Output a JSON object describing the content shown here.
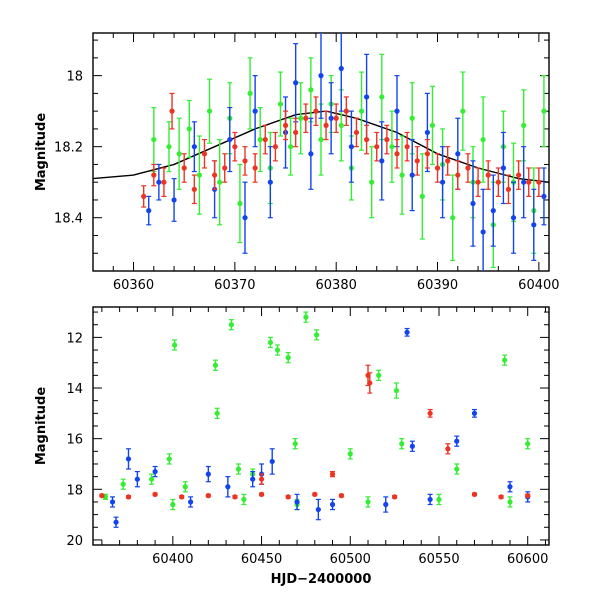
{
  "colors": {
    "green": "#33ee33",
    "blue": "#1144ee",
    "red": "#ee3322",
    "model": "#000000"
  },
  "chart_data": [
    {
      "type": "scatter",
      "panel": "top",
      "title": "",
      "xlabel": "",
      "ylabel": "Magnitude",
      "xlim": [
        60356,
        60401
      ],
      "ylim": [
        18.55,
        17.88
      ],
      "y_inverted": true,
      "x_ticks": [
        60360,
        60370,
        60380,
        60390,
        60400
      ],
      "y_ticks": [
        18,
        18.2,
        18.4
      ],
      "x_tick_labels": [
        "60360",
        "60370",
        "60380",
        "60390",
        "60400"
      ],
      "y_tick_labels": [
        "18",
        "18.2",
        "18.4"
      ],
      "series": [
        {
          "color": "green",
          "points": [
            [
              60362,
              18.18,
              0.09
            ],
            [
              60363.5,
              18.2,
              0.07
            ],
            [
              60364.5,
              18.22,
              0.1
            ],
            [
              60365.5,
              18.15,
              0.08
            ],
            [
              60366.5,
              18.28,
              0.11
            ],
            [
              60367.5,
              18.1,
              0.09
            ],
            [
              60368.5,
              18.3,
              0.12
            ],
            [
              60369.5,
              18.12,
              0.1
            ],
            [
              60370.5,
              18.36,
              0.11
            ],
            [
              60371.5,
              18.05,
              0.1
            ],
            [
              60372.5,
              18.18,
              0.09
            ],
            [
              60373.5,
              18.26,
              0.1
            ],
            [
              60374.5,
              18.08,
              0.09
            ],
            [
              60375.5,
              18.2,
              0.08
            ],
            [
              60376.5,
              18.12,
              0.1
            ],
            [
              60377.5,
              18.04,
              0.09
            ],
            [
              60378.5,
              18.18,
              0.1
            ],
            [
              60379.5,
              18.08,
              0.08
            ],
            [
              60380.5,
              18.14,
              0.1
            ],
            [
              60381.5,
              18.26,
              0.09
            ],
            [
              60382.5,
              18.1,
              0.11
            ],
            [
              60383.5,
              18.3,
              0.1
            ],
            [
              60384.5,
              18.06,
              0.12
            ],
            [
              60385.5,
              18.2,
              0.1
            ],
            [
              60386.5,
              18.28,
              0.11
            ],
            [
              60387.5,
              18.12,
              0.1
            ],
            [
              60388.5,
              18.34,
              0.12
            ],
            [
              60389.5,
              18.14,
              0.11
            ],
            [
              60390.5,
              18.25,
              0.1
            ],
            [
              60391.5,
              18.4,
              0.12
            ],
            [
              60392.5,
              18.1,
              0.11
            ],
            [
              60393.5,
              18.3,
              0.1
            ],
            [
              60394.5,
              18.18,
              0.12
            ],
            [
              60395.5,
              18.42,
              0.12
            ],
            [
              60396.5,
              18.2,
              0.1
            ],
            [
              60397.5,
              18.3,
              0.11
            ],
            [
              60398.5,
              18.14,
              0.1
            ],
            [
              60399.5,
              18.38,
              0.12
            ],
            [
              60400.5,
              18.1,
              0.1
            ]
          ]
        },
        {
          "color": "blue",
          "points": [
            [
              60361.5,
              18.38,
              0.04
            ],
            [
              60362.5,
              18.3,
              0.05
            ],
            [
              60364,
              18.35,
              0.06
            ],
            [
              60366,
              18.2,
              0.07
            ],
            [
              60368,
              18.32,
              0.08
            ],
            [
              60369.5,
              18.18,
              0.09
            ],
            [
              60371,
              18.4,
              0.1
            ],
            [
              60372,
              18.1,
              0.1
            ],
            [
              60373.5,
              18.3,
              0.1
            ],
            [
              60375,
              18.16,
              0.1
            ],
            [
              60376,
              18.02,
              0.11
            ],
            [
              60377.5,
              18.22,
              0.1
            ],
            [
              60378.5,
              18.0,
              0.12
            ],
            [
              60379.5,
              18.12,
              0.1
            ],
            [
              60380.5,
              17.98,
              0.12
            ],
            [
              60381.5,
              18.2,
              0.1
            ],
            [
              60383,
              18.06,
              0.12
            ],
            [
              60384.5,
              18.24,
              0.11
            ],
            [
              60386,
              18.1,
              0.1
            ],
            [
              60387.5,
              18.28,
              0.1
            ],
            [
              60389,
              18.16,
              0.11
            ],
            [
              60390.5,
              18.3,
              0.1
            ],
            [
              60392,
              18.22,
              0.1
            ],
            [
              60393.5,
              18.36,
              0.12
            ],
            [
              60394.5,
              18.44,
              0.12
            ],
            [
              60395.5,
              18.38,
              0.1
            ],
            [
              60396.5,
              18.26,
              0.1
            ],
            [
              60397.5,
              18.4,
              0.1
            ],
            [
              60398.5,
              18.3,
              0.1
            ],
            [
              60399.5,
              18.42,
              0.1
            ],
            [
              60400.5,
              18.34,
              0.08
            ]
          ]
        },
        {
          "color": "red",
          "points": [
            [
              60361,
              18.34,
              0.03
            ],
            [
              60362,
              18.28,
              0.03
            ],
            [
              60363,
              18.3,
              0.04
            ],
            [
              60363.8,
              18.1,
              0.05
            ],
            [
              60365,
              18.26,
              0.04
            ],
            [
              60366,
              18.32,
              0.04
            ],
            [
              60367,
              18.22,
              0.04
            ],
            [
              60368,
              18.28,
              0.04
            ],
            [
              60369,
              18.26,
              0.04
            ],
            [
              60370,
              18.2,
              0.04
            ],
            [
              60371,
              18.24,
              0.04
            ],
            [
              60372,
              18.26,
              0.04
            ],
            [
              60373,
              18.18,
              0.04
            ],
            [
              60374,
              18.2,
              0.04
            ],
            [
              60375,
              18.14,
              0.04
            ],
            [
              60376,
              18.16,
              0.04
            ],
            [
              60377,
              18.12,
              0.04
            ],
            [
              60378,
              18.1,
              0.04
            ],
            [
              60379,
              18.14,
              0.04
            ],
            [
              60380,
              18.12,
              0.04
            ],
            [
              60381,
              18.1,
              0.04
            ],
            [
              60382,
              18.16,
              0.04
            ],
            [
              60383,
              18.18,
              0.04
            ],
            [
              60384,
              18.2,
              0.04
            ],
            [
              60385,
              18.18,
              0.04
            ],
            [
              60386,
              18.22,
              0.04
            ],
            [
              60387,
              18.2,
              0.04
            ],
            [
              60388,
              18.24,
              0.04
            ],
            [
              60389,
              18.22,
              0.04
            ],
            [
              60390,
              18.26,
              0.04
            ],
            [
              60391,
              18.24,
              0.04
            ],
            [
              60392,
              18.28,
              0.04
            ],
            [
              60393,
              18.26,
              0.04
            ],
            [
              60394,
              18.3,
              0.04
            ],
            [
              60395,
              18.28,
              0.04
            ],
            [
              60396,
              18.3,
              0.04
            ],
            [
              60397,
              18.32,
              0.04
            ],
            [
              60398,
              18.28,
              0.04
            ],
            [
              60399,
              18.3,
              0.04
            ],
            [
              60400,
              18.3,
              0.04
            ]
          ]
        }
      ],
      "model_curve": {
        "color": "model",
        "x": [
          60356,
          60360,
          60364,
          60368,
          60372,
          60376,
          60379,
          60382,
          60386,
          60390,
          60394,
          60398,
          60401
        ],
        "y": [
          18.29,
          18.28,
          18.25,
          18.2,
          18.15,
          18.11,
          18.1,
          18.12,
          18.16,
          18.22,
          18.26,
          18.29,
          18.3
        ]
      }
    },
    {
      "type": "scatter",
      "panel": "bottom",
      "title": "",
      "xlabel": "HJD−2400000",
      "ylabel": "Magnitude",
      "xlim": [
        60355,
        60612
      ],
      "ylim": [
        20.2,
        10.8
      ],
      "y_inverted": true,
      "x_ticks": [
        60400,
        60450,
        60500,
        60550,
        60600
      ],
      "y_ticks": [
        12,
        14,
        16,
        18,
        20
      ],
      "x_tick_labels": [
        "60400",
        "60450",
        "60500",
        "60550",
        "60600"
      ],
      "y_tick_labels": [
        "12",
        "14",
        "16",
        "18",
        "20"
      ],
      "series": [
        {
          "color": "green",
          "points": [
            [
              60362,
              18.3,
              0.1
            ],
            [
              60372,
              17.8,
              0.2
            ],
            [
              60388,
              17.6,
              0.2
            ],
            [
              60398,
              16.8,
              0.2
            ],
            [
              60401,
              12.3,
              0.2
            ],
            [
              60407,
              17.9,
              0.2
            ],
            [
              60424,
              13.1,
              0.2
            ],
            [
              60425,
              15.0,
              0.2
            ],
            [
              60433,
              11.5,
              0.2
            ],
            [
              60437,
              17.2,
              0.2
            ],
            [
              60445,
              17.4,
              0.2
            ],
            [
              60455,
              12.2,
              0.2
            ],
            [
              60459,
              12.5,
              0.2
            ],
            [
              60465,
              12.8,
              0.2
            ],
            [
              60469,
              16.2,
              0.2
            ],
            [
              60475,
              11.2,
              0.2
            ],
            [
              60481,
              11.9,
              0.2
            ],
            [
              60500,
              16.6,
              0.2
            ],
            [
              60516,
              13.5,
              0.2
            ],
            [
              60526,
              14.1,
              0.3
            ],
            [
              60529,
              16.2,
              0.2
            ],
            [
              60560,
              17.2,
              0.2
            ],
            [
              60587,
              12.9,
              0.2
            ],
            [
              60600,
              16.2,
              0.2
            ],
            [
              60400,
              18.6,
              0.2
            ],
            [
              60440,
              18.4,
              0.2
            ],
            [
              60470,
              18.6,
              0.2
            ],
            [
              60510,
              18.5,
              0.2
            ],
            [
              60550,
              18.4,
              0.2
            ],
            [
              60590,
              18.5,
              0.2
            ]
          ]
        },
        {
          "color": "blue",
          "points": [
            [
              60366,
              18.5,
              0.2
            ],
            [
              60368,
              19.3,
              0.2
            ],
            [
              60375,
              16.8,
              0.4
            ],
            [
              60380,
              17.6,
              0.3
            ],
            [
              60390,
              17.3,
              0.2
            ],
            [
              60420,
              17.4,
              0.3
            ],
            [
              60431,
              17.9,
              0.4
            ],
            [
              60445,
              17.6,
              0.3
            ],
            [
              60450,
              17.4,
              0.4
            ],
            [
              60456,
              16.9,
              0.5
            ],
            [
              60470,
              18.5,
              0.3
            ],
            [
              60482,
              18.8,
              0.4
            ],
            [
              60490,
              18.6,
              0.2
            ],
            [
              60532,
              11.8,
              0.15
            ],
            [
              60535,
              16.3,
              0.2
            ],
            [
              60560,
              16.1,
              0.2
            ],
            [
              60570,
              15.0,
              0.15
            ],
            [
              60590,
              17.9,
              0.2
            ],
            [
              60600,
              18.3,
              0.2
            ],
            [
              60410,
              18.5,
              0.2
            ],
            [
              60520,
              18.6,
              0.3
            ],
            [
              60545,
              18.4,
              0.2
            ]
          ]
        },
        {
          "color": "red",
          "points": [
            [
              60360,
              18.25,
              0.05
            ],
            [
              60375,
              18.3,
              0.05
            ],
            [
              60390,
              18.2,
              0.05
            ],
            [
              60405,
              18.3,
              0.05
            ],
            [
              60420,
              18.25,
              0.05
            ],
            [
              60435,
              18.3,
              0.05
            ],
            [
              60450,
              18.2,
              0.05
            ],
            [
              60465,
              18.3,
              0.05
            ],
            [
              60480,
              18.2,
              0.05
            ],
            [
              60495,
              18.25,
              0.05
            ],
            [
              60510,
              13.5,
              0.4
            ],
            [
              60511,
              13.8,
              0.4
            ],
            [
              60525,
              18.3,
              0.05
            ],
            [
              60545,
              15.0,
              0.15
            ],
            [
              60555,
              16.4,
              0.2
            ],
            [
              60570,
              18.2,
              0.05
            ],
            [
              60585,
              18.3,
              0.05
            ],
            [
              60600,
              18.25,
              0.05
            ],
            [
              60490,
              17.4,
              0.1
            ],
            [
              60450,
              17.6,
              0.2
            ]
          ]
        }
      ]
    }
  ]
}
